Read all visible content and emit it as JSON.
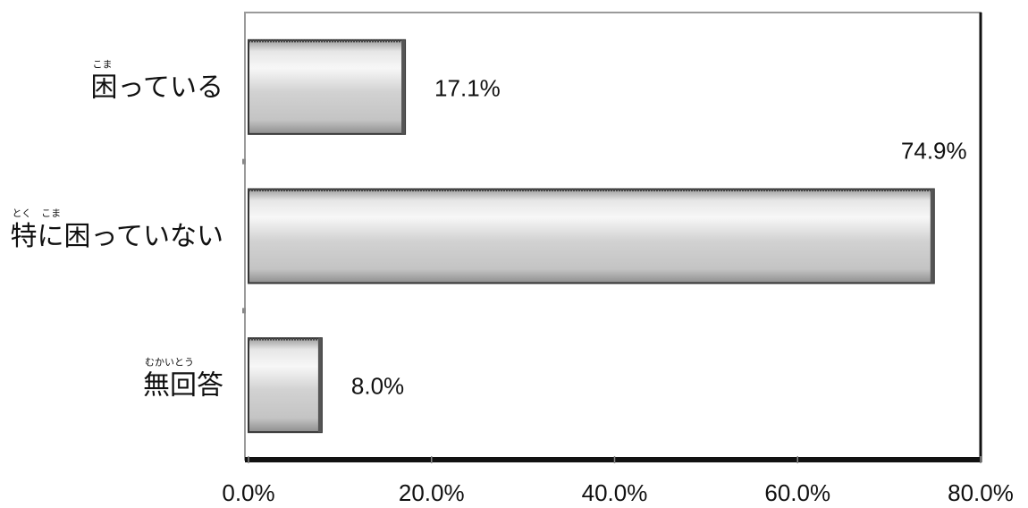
{
  "chart_data": {
    "type": "bar",
    "orientation": "horizontal",
    "categories": [
      {
        "label": "困っている",
        "ruby": "こま"
      },
      {
        "label": "特に困っていない",
        "ruby": "とく　こま"
      },
      {
        "label": "無回答",
        "ruby": "むかいとう"
      }
    ],
    "values": [
      17.1,
      74.9,
      8.0
    ],
    "data_labels": [
      "17.1%",
      "74.9%",
      "8.0%"
    ],
    "xlim": [
      0,
      80
    ],
    "xticks": [
      0,
      20,
      40,
      60,
      80
    ],
    "xtick_labels": [
      "0.0%",
      "20.0%",
      "40.0%",
      "60.0%",
      "80.0%"
    ],
    "title": "",
    "xlabel": "",
    "ylabel": "",
    "grid": false,
    "legend": "none",
    "colors": {
      "bar_fill": "#c8c8c8",
      "bar_highlight": "#f4f4f4",
      "bar_edge": "#333333",
      "axis": "#111111",
      "frame": "#9a9a9a"
    }
  }
}
